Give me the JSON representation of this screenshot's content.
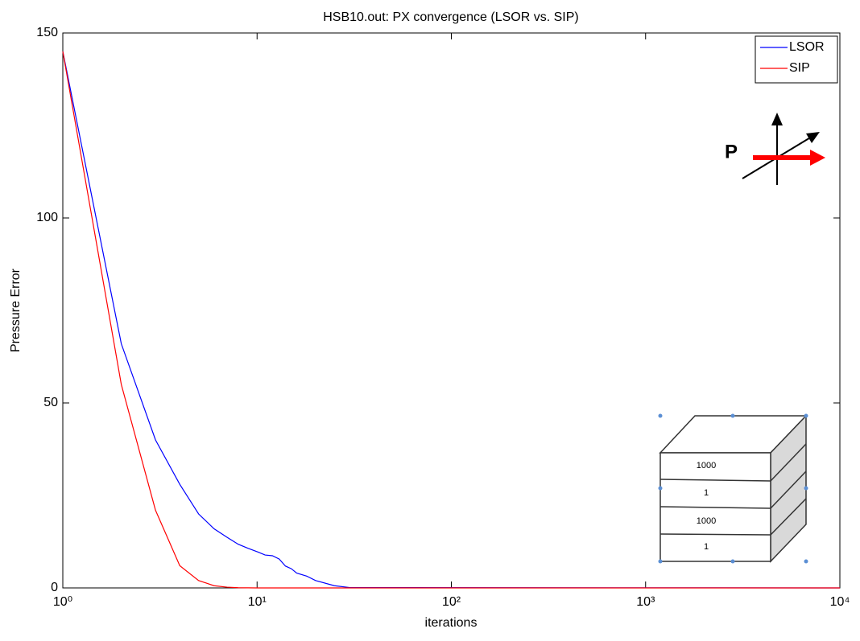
{
  "chart_data": {
    "type": "line",
    "title": "HSB10.out: PX convergence (LSOR vs. SIP)",
    "x_label": "iterations",
    "y_label": "Pressure Error",
    "xscale": "log",
    "xlim": [
      1,
      10000
    ],
    "xticks": [
      {
        "value": 1,
        "label": "10⁰"
      },
      {
        "value": 10,
        "label": "10¹"
      },
      {
        "value": 100,
        "label": "10²"
      },
      {
        "value": 1000,
        "label": "10³"
      },
      {
        "value": 10000,
        "label": "10⁴"
      }
    ],
    "ylim": [
      0,
      150
    ],
    "yticks": [
      0,
      50,
      100,
      150
    ],
    "legend": "top-right",
    "series": [
      {
        "name": "LSOR",
        "color": "#0000ff",
        "x": [
          1,
          2,
          3,
          4,
          5,
          6,
          7,
          8,
          9,
          10,
          11,
          12,
          13,
          14,
          15,
          16,
          18,
          20,
          25,
          30,
          10000
        ],
        "values": [
          145,
          66,
          40,
          28,
          20,
          16,
          13.7,
          11.8,
          10.7,
          9.8,
          8.9,
          8.7,
          7.8,
          5.9,
          5.2,
          4,
          3.2,
          2,
          0.6,
          0.1,
          0
        ]
      },
      {
        "name": "SIP",
        "color": "#ff0000",
        "x": [
          1,
          2,
          3,
          4,
          5,
          6,
          7,
          8,
          10,
          10000
        ],
        "values": [
          145,
          55,
          21,
          6,
          2,
          0.6,
          0.2,
          0.05,
          0,
          0
        ]
      }
    ],
    "annotations": {
      "direction_label": "P",
      "layer_labels": [
        "1000",
        "1",
        "1000",
        "1"
      ]
    }
  }
}
